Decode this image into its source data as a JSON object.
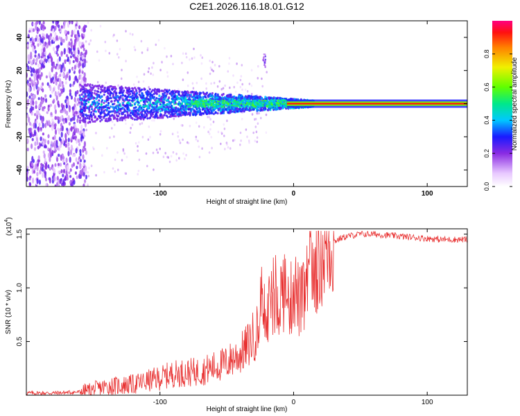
{
  "chart_data": [
    {
      "type": "heatmap",
      "title": "C2E1.2026.116.18.01.G12",
      "xlabel": "Height of straight line (km)",
      "ylabel": "Frequency (Hz)",
      "xlim": [
        -200,
        130
      ],
      "ylim": [
        -50,
        50
      ],
      "xticks": [
        -100,
        0,
        100
      ],
      "yticks": [
        40,
        20,
        0,
        -20,
        -40
      ],
      "colorbar": {
        "label": "Normalized spectral amplitude",
        "range": [
          0,
          1
        ],
        "ticks": [
          "0.0",
          "0.2",
          "0.4",
          "0.6",
          "0.8"
        ]
      }
    },
    {
      "type": "line",
      "xlabel": "Height of straight line (km)",
      "ylabel": "SNR (10 * v/v)",
      "yscale_label": "(x10",
      "yscale_exp": "4",
      "yscale_close": ")",
      "xlim": [
        -200,
        130
      ],
      "ylim": [
        0,
        1.55
      ],
      "xticks": [
        -100,
        0,
        100
      ],
      "yticks": [
        "0.5",
        "1.0",
        "1.5"
      ],
      "series": [
        {
          "name": "SNR",
          "color": "#e83030",
          "x": [
            -200,
            -180,
            -160,
            -150,
            -140,
            -130,
            -120,
            -110,
            -100,
            -90,
            -80,
            -70,
            -60,
            -50,
            -45,
            -40,
            -35,
            -30,
            -25,
            -22,
            -20,
            -18,
            -15,
            -12,
            -10,
            -8,
            -5,
            -2,
            0,
            2,
            5,
            8,
            10,
            15,
            20,
            25,
            30,
            35,
            40,
            50,
            60,
            70,
            80,
            90,
            100,
            110,
            120,
            130
          ],
          "values": [
            0.02,
            0.02,
            0.03,
            0.05,
            0.08,
            0.09,
            0.1,
            0.13,
            0.16,
            0.2,
            0.21,
            0.22,
            0.26,
            0.3,
            0.35,
            0.38,
            0.45,
            0.55,
            0.65,
            0.8,
            0.6,
            0.95,
            0.85,
            0.9,
            0.92,
            1.0,
            0.9,
            0.88,
            1.05,
            0.95,
            0.85,
            0.9,
            1.05,
            1.2,
            1.3,
            1.38,
            1.43,
            1.46,
            1.48,
            1.5,
            1.5,
            1.49,
            1.48,
            1.47,
            1.46,
            1.45,
            1.45,
            1.45
          ]
        }
      ]
    }
  ]
}
